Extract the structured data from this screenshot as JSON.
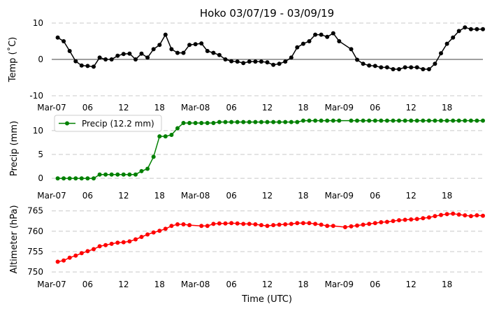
{
  "chart_data": {
    "type": "line",
    "title": "Hoko 03/07/19 - 03/09/19",
    "xlabel": "Time (UTC)",
    "x_tick_labels": [
      "Mar-07",
      "06",
      "12",
      "18",
      "Mar-08",
      "06",
      "12",
      "18",
      "Mar-09",
      "06",
      "12",
      "18"
    ],
    "x_tick_hours": [
      0,
      6,
      12,
      18,
      24,
      30,
      36,
      42,
      48,
      54,
      60,
      66
    ],
    "x_unit": "hours since 2019-03-07 00:00 UTC",
    "xlim": [
      0,
      72
    ],
    "panels": [
      {
        "id": "temp",
        "ylabel": "Temp ($^\\circ$C)",
        "ylabel_display": "Temp (˚C)",
        "ylim": [
          -10,
          10
        ],
        "yticks": [
          -10,
          0,
          10
        ],
        "grid": "horizontal dashed",
        "zero_line": true,
        "series": [
          {
            "color": "#000000",
            "x": [
              1,
              2,
              3,
              4,
              5,
              6,
              7,
              8,
              9,
              10,
              11,
              12,
              13,
              14,
              15,
              16,
              17,
              18,
              19,
              20,
              21,
              22,
              23,
              24,
              25,
              26,
              27,
              28,
              29,
              30,
              31,
              32,
              33,
              34,
              35,
              36,
              37,
              38,
              39,
              40,
              41,
              42,
              43,
              44,
              45,
              46,
              47,
              48,
              50,
              51,
              52,
              53,
              54,
              55,
              56,
              57,
              58,
              59,
              60,
              61,
              62,
              63,
              64,
              65,
              66,
              67,
              68,
              69,
              70,
              71,
              72
            ],
            "y": [
              6,
              5,
              2.3,
              -0.5,
              -1.7,
              -1.8,
              -2,
              0.5,
              0,
              0,
              1,
              1.5,
              1.6,
              0,
              1.6,
              0.5,
              2.8,
              4,
              6.8,
              2.8,
              1.8,
              1.8,
              4,
              4.2,
              4.4,
              2.3,
              1.8,
              1.2,
              0,
              -0.5,
              -0.6,
              -1,
              -0.6,
              -0.6,
              -0.6,
              -0.8,
              -1.5,
              -1.2,
              -0.6,
              0.5,
              3.3,
              4.3,
              5,
              6.8,
              6.8,
              6.2,
              7.2,
              5,
              2.8,
              -0.1,
              -1.2,
              -1.7,
              -1.8,
              -2.2,
              -2.2,
              -2.7,
              -2.7,
              -2.2,
              -2.2,
              -2.2,
              -2.7,
              -2.7,
              -1.2,
              1.7,
              4.3,
              6,
              7.8,
              8.8,
              8.3,
              8.3,
              8.3
            ]
          }
        ]
      },
      {
        "id": "precip",
        "ylabel": "Precip (mm)",
        "ylim": [
          -1,
          13.5
        ],
        "yticks": [
          0,
          5,
          10
        ],
        "grid": "horizontal dashed",
        "legend": {
          "position": "upper left",
          "entries": [
            "Precip (12.2 mm)"
          ]
        },
        "series": [
          {
            "name": "Precip (12.2 mm)",
            "color": "#008000",
            "x": [
              1,
              2,
              3,
              4,
              5,
              6,
              7,
              8,
              9,
              10,
              11,
              12,
              13,
              14,
              15,
              16,
              17,
              18,
              19,
              20,
              21,
              22,
              23,
              24,
              25,
              26,
              27,
              28,
              29,
              30,
              31,
              32,
              33,
              34,
              35,
              36,
              37,
              38,
              39,
              40,
              41,
              42,
              43,
              44,
              45,
              46,
              47,
              48,
              50,
              51,
              52,
              53,
              54,
              55,
              56,
              57,
              58,
              59,
              60,
              61,
              62,
              63,
              64,
              65,
              66,
              67,
              68,
              69,
              70,
              71,
              72
            ],
            "y": [
              0,
              0,
              0,
              0,
              0,
              0,
              0,
              0.8,
              0.8,
              0.8,
              0.8,
              0.8,
              0.8,
              0.8,
              1.5,
              2,
              4.5,
              8.8,
              8.8,
              9.1,
              10.5,
              11.6,
              11.6,
              11.6,
              11.6,
              11.6,
              11.6,
              11.8,
              11.8,
              11.8,
              11.8,
              11.8,
              11.8,
              11.8,
              11.8,
              11.8,
              11.8,
              11.8,
              11.8,
              11.8,
              11.8,
              12.1,
              12.1,
              12.1,
              12.1,
              12.1,
              12.1,
              12.1,
              12.1,
              12.1,
              12.1,
              12.1,
              12.1,
              12.1,
              12.1,
              12.1,
              12.1,
              12.1,
              12.1,
              12.1,
              12.1,
              12.1,
              12.1,
              12.1,
              12.1,
              12.1,
              12.1,
              12.1,
              12.1,
              12.1,
              12.1
            ]
          }
        ]
      },
      {
        "id": "altimeter",
        "ylabel": "Altimeter (hPa)",
        "ylim": [
          749.5,
          766.5
        ],
        "yticks": [
          750,
          755,
          760,
          765
        ],
        "grid": "horizontal dashed",
        "series": [
          {
            "color": "#ff0000",
            "x": [
              1,
              2,
              3,
              4,
              5,
              6,
              7,
              8,
              9,
              10,
              11,
              12,
              13,
              14,
              15,
              16,
              17,
              18,
              19,
              20,
              21,
              22,
              23,
              25,
              26,
              27,
              28,
              29,
              30,
              31,
              32,
              33,
              34,
              35,
              36,
              37,
              38,
              39,
              40,
              41,
              42,
              43,
              44,
              45,
              46,
              47,
              49,
              50,
              51,
              52,
              53,
              54,
              55,
              56,
              57,
              58,
              59,
              60,
              61,
              62,
              63,
              64,
              65,
              66,
              67,
              68,
              69,
              70,
              71,
              72
            ],
            "y": [
              752.5,
              752.8,
              753.5,
              754,
              754.6,
              755.1,
              755.6,
              756.3,
              756.6,
              756.9,
              757.2,
              757.3,
              757.5,
              758,
              758.6,
              759.2,
              759.7,
              760.1,
              760.6,
              761.3,
              761.7,
              761.7,
              761.5,
              761.3,
              761.3,
              761.8,
              761.9,
              761.9,
              762,
              761.9,
              761.8,
              761.8,
              761.7,
              761.5,
              761.3,
              761.5,
              761.6,
              761.7,
              761.8,
              762,
              762,
              762,
              761.8,
              761.6,
              761.3,
              761.3,
              761,
              761.2,
              761.4,
              761.6,
              761.8,
              762,
              762.2,
              762.3,
              762.5,
              762.7,
              762.8,
              762.9,
              763,
              763.2,
              763.4,
              763.7,
              764,
              764.2,
              764.3,
              764.1,
              763.9,
              763.7,
              763.9,
              763.8
            ]
          }
        ]
      }
    ]
  }
}
